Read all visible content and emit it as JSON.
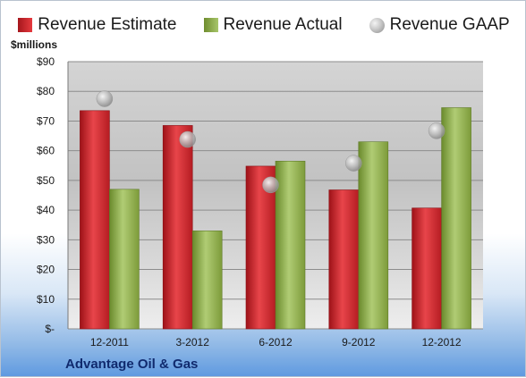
{
  "legend": {
    "estimate_label": "Revenue Estimate",
    "actual_label": "Revenue Actual",
    "gaap_label": "Revenue GAAP"
  },
  "y_unit": "$millions",
  "company": "Advantage Oil & Gas",
  "colors": {
    "estimate": "#c8252b",
    "actual": "#8fad4e",
    "gaap": "#bfbfbf"
  },
  "chart_data": {
    "type": "bar",
    "categories": [
      "12-2011",
      "3-2012",
      "6-2012",
      "9-2012",
      "12-2012"
    ],
    "series": [
      {
        "name": "Revenue Estimate",
        "values": [
          73.5,
          68.5,
          54.8,
          46.8,
          40.7
        ]
      },
      {
        "name": "Revenue Actual",
        "values": [
          47.0,
          33.0,
          56.5,
          63.0,
          74.5
        ]
      },
      {
        "name": "Revenue GAAP",
        "values": [
          77.5,
          63.8,
          48.5,
          55.8,
          66.7
        ]
      }
    ],
    "ylim": [
      0,
      90
    ],
    "yticks": [
      0,
      10,
      20,
      30,
      40,
      50,
      60,
      70,
      80,
      90
    ],
    "ytick_labels": [
      "$-",
      "$10",
      "$20",
      "$30",
      "$40",
      "$50",
      "$60",
      "$70",
      "$80",
      "$90"
    ],
    "ylabel": "$millions",
    "grid": true,
    "legend_position": "top"
  }
}
